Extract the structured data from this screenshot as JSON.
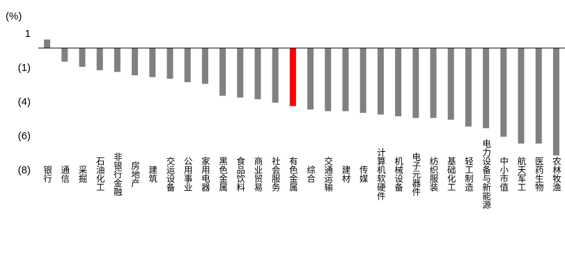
{
  "chart_data": {
    "type": "bar",
    "unit_label": "(%)",
    "y_ticks": [
      1,
      -1,
      -4,
      -6,
      -8
    ],
    "y_tick_labels": [
      "1",
      "(1)",
      "(4)",
      "(6)",
      "(8)"
    ],
    "ylim": [
      -8,
      1
    ],
    "grid": false,
    "legend": "none",
    "bar_color": "#808080",
    "highlight_color": "#ff0000",
    "highlight_category": "有色金属",
    "categories": [
      "银行",
      "通信",
      "采掘",
      "石油化工",
      "非银行金融",
      "房地产",
      "建筑",
      "交运设备",
      "公用事业",
      "家用电器",
      "黑色金属",
      "食品饮料",
      "商业贸易",
      "社会服务",
      "有色金属",
      "综合",
      "交通运输",
      "建材",
      "传媒",
      "计算机软硬件",
      "机械设备",
      "电子元器件",
      "纺织服装",
      "基础化工",
      "轻工制造",
      "电力设备与新能源",
      "中小市值",
      "航天军工",
      "医药生物",
      "农林牧渔"
    ],
    "values": [
      0.5,
      -0.8,
      -1.1,
      -1.3,
      -1.4,
      -1.6,
      -1.7,
      -1.8,
      -2.0,
      -2.1,
      -2.8,
      -2.9,
      -3.0,
      -3.2,
      -3.4,
      -3.6,
      -3.7,
      -3.7,
      -3.8,
      -3.9,
      -4.0,
      -4.1,
      -4.1,
      -4.2,
      -4.6,
      -4.7,
      -5.2,
      -5.6,
      -5.6,
      -6.3
    ]
  }
}
